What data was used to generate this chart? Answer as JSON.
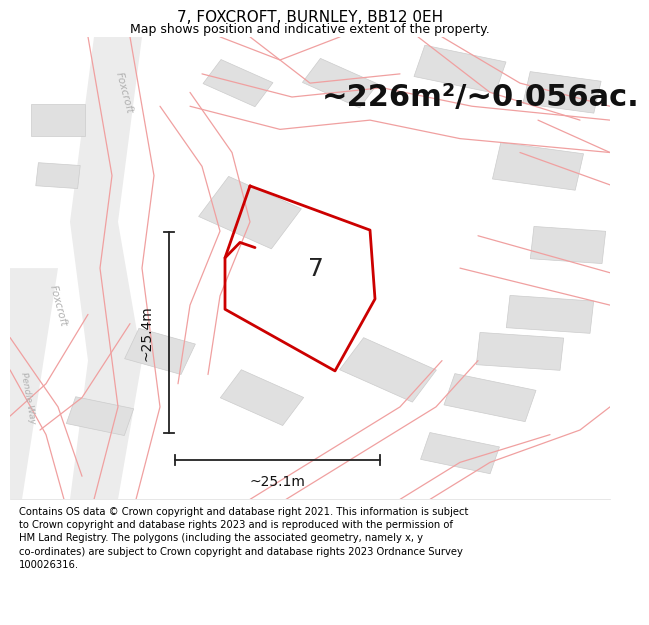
{
  "title": "7, FOXCROFT, BURNLEY, BB12 0EH",
  "subtitle": "Map shows position and indicative extent of the property.",
  "area_label": "~226m²/~0.056ac.",
  "width_label": "~25.1m",
  "height_label": "~25.4m",
  "property_number": "7",
  "footer": "Contains OS data © Crown copyright and database right 2021. This information is subject to Crown copyright and database rights 2023 and is reproduced with the permission of HM Land Registry. The polygons (including the associated geometry, namely x, y co-ordinates) are subject to Crown copyright and database rights 2023 Ordnance Survey 100026316.",
  "bg_color": "#ffffff",
  "map_bg": "#f7f7f7",
  "plot_color": "#cc0000",
  "road_color": "#f0a0a0",
  "road_color2": "#e8c8c8",
  "building_color": "#e0e0e0",
  "building_edge": "#cccccc",
  "dim_color": "#222222",
  "road_label_color": "#b0b0b0",
  "title_fontsize": 11,
  "subtitle_fontsize": 9,
  "area_fontsize": 22,
  "dim_fontsize": 10,
  "property_num_fontsize": 18,
  "footer_fontsize": 7.2
}
